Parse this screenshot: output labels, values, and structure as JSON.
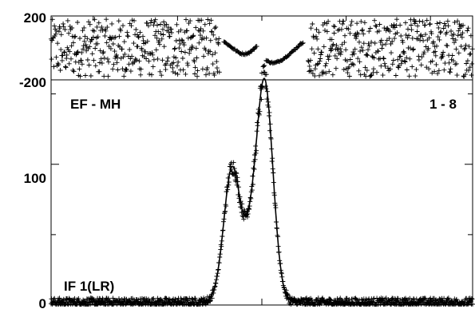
{
  "chart_data": [
    {
      "type": "scatter",
      "panel": "phase",
      "y_tick_labels": [
        "200",
        "-200"
      ],
      "ylim": [
        -200,
        200
      ],
      "xlim": [
        -250,
        250
      ],
      "marker": "+",
      "description_of_shape": "noisy scatter across full range, with a smooth dip in the middle where amplitude is high",
      "smooth_segments": [
        {
          "x": [
            -45,
            -40,
            -35,
            -30,
            -25,
            -20,
            -15,
            -10,
            -5
          ],
          "y": [
            40,
            20,
            0,
            -20,
            -35,
            -38,
            -30,
            -10,
            20
          ]
        },
        {
          "x": [
            5,
            10,
            15,
            20,
            25,
            30,
            35,
            40,
            45,
            50
          ],
          "y": [
            -80,
            -90,
            -95,
            -85,
            -70,
            -50,
            -30,
            -5,
            20,
            40
          ]
        }
      ],
      "noise_x_ranges": [
        [
          -250,
          -50
        ],
        [
          55,
          250
        ]
      ]
    },
    {
      "type": "scatter",
      "panel": "amplitude",
      "y_tick_labels": [
        "0",
        "100"
      ],
      "ylim": [
        0,
        160
      ],
      "xlim": [
        -250,
        250
      ],
      "marker": "+",
      "baseline_value": 2,
      "peaks": [
        {
          "center": -35,
          "height": 96,
          "width": 10
        },
        {
          "center": 3,
          "height": 158,
          "width": 10
        },
        {
          "center": -15,
          "height": 25,
          "width": 7
        }
      ],
      "fit_line": true
    }
  ],
  "labels": {
    "baseline": "EF - MH",
    "channel_range": "1 - 8",
    "if_label": "IF 1(LR)"
  },
  "colors": {
    "data": "#000000",
    "axis": "#000000",
    "background": "#ffffff"
  }
}
